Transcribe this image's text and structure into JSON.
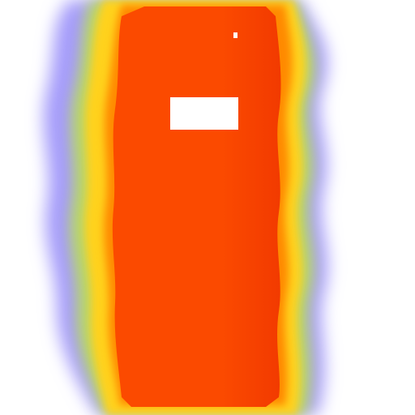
{
  "image": {
    "description_type": "thermal-style heatmap blob",
    "palette": {
      "background": "#ffffff",
      "outer_glow": "#a59cfa",
      "mid_glow": "#b8d66a",
      "warm_edge": "#ffd21a",
      "hot_orange": "#ff8a00",
      "core": "#fb4a00",
      "core_deep": "#f23a00",
      "highlight": "#ffffff"
    },
    "features": {
      "upper_white_patch": "present",
      "small_white_dot": "present",
      "right_side_white_notches": "present"
    }
  }
}
